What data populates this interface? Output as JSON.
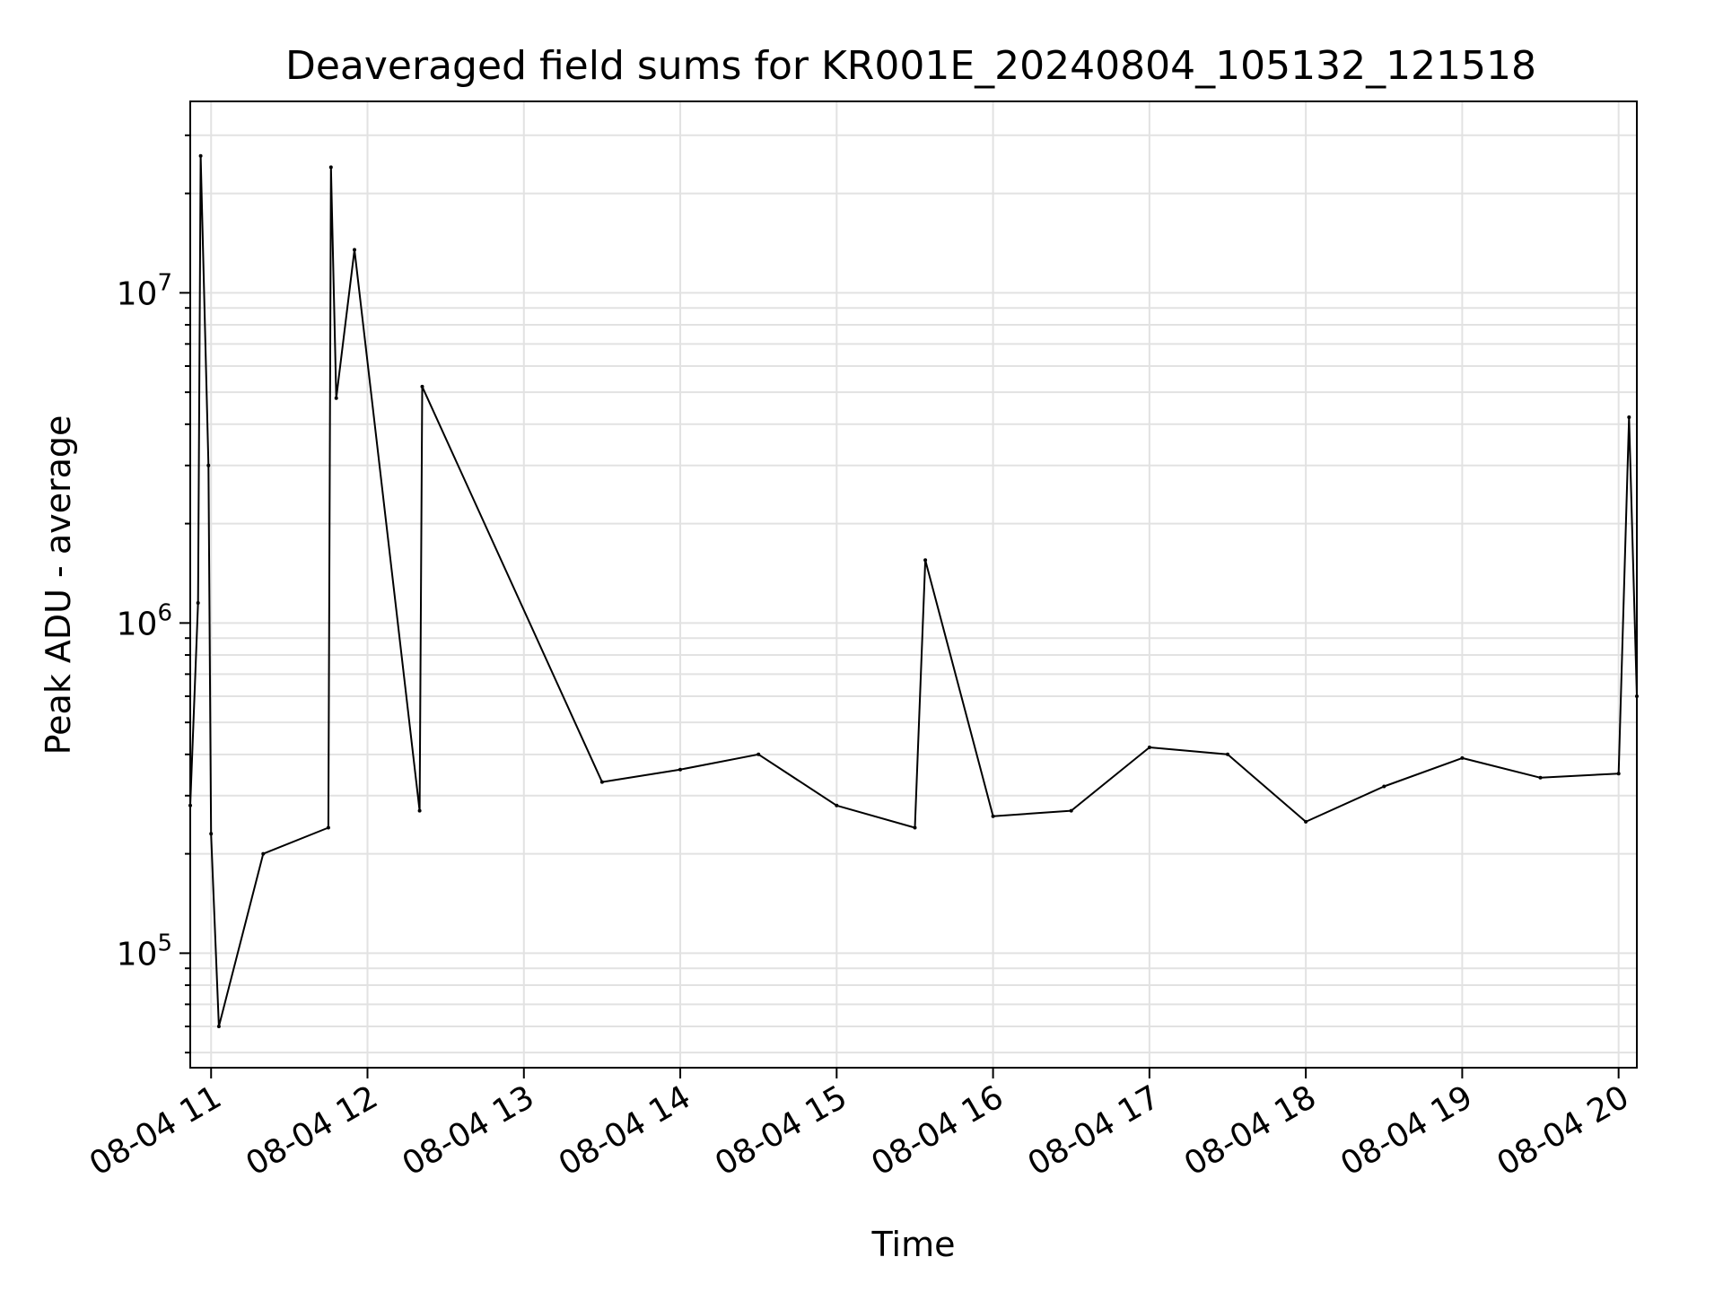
{
  "chart_data": {
    "type": "line",
    "title": "Deaveraged field sums for KR001E_20240804_105132_121518",
    "xlabel": "Time",
    "ylabel": "Peak ADU - average",
    "x_range": [
      "2024-08-04 10:52",
      "2024-08-04 20:07"
    ],
    "y_scale": "log",
    "ylim": [
      45000,
      38000000
    ],
    "grid": true,
    "line_color": "#000000",
    "x_ticks": [
      "08-04 11",
      "08-04 12",
      "08-04 13",
      "08-04 14",
      "08-04 15",
      "08-04 16",
      "08-04 17",
      "08-04 18",
      "08-04 19",
      "08-04 20"
    ],
    "y_ticks": [
      {
        "value": 100000,
        "base": "10",
        "exp": "5"
      },
      {
        "value": 1000000,
        "base": "10",
        "exp": "6"
      },
      {
        "value": 10000000,
        "base": "10",
        "exp": "7"
      }
    ],
    "series": [
      {
        "x": [
          "2024-08-04 10:52",
          "2024-08-04 10:55",
          "2024-08-04 10:56",
          "2024-08-04 10:59",
          "2024-08-04 11:00",
          "2024-08-04 11:03",
          "2024-08-04 11:20",
          "2024-08-04 11:45",
          "2024-08-04 11:46",
          "2024-08-04 11:48",
          "2024-08-04 11:55",
          "2024-08-04 12:20",
          "2024-08-04 12:21",
          "2024-08-04 13:30",
          "2024-08-04 14:00",
          "2024-08-04 14:30",
          "2024-08-04 15:00",
          "2024-08-04 15:30",
          "2024-08-04 15:34",
          "2024-08-04 16:00",
          "2024-08-04 16:30",
          "2024-08-04 17:00",
          "2024-08-04 17:30",
          "2024-08-04 18:00",
          "2024-08-04 18:30",
          "2024-08-04 19:00",
          "2024-08-04 19:30",
          "2024-08-04 20:00",
          "2024-08-04 20:04",
          "2024-08-04 20:07"
        ],
        "y": [
          280000,
          1150000,
          26000000,
          3000000,
          230000,
          60000,
          200000,
          240000,
          24000000,
          4800000,
          13500000,
          270000,
          5200000,
          330000,
          360000,
          400000,
          280000,
          240000,
          1550000,
          260000,
          270000,
          420000,
          400000,
          250000,
          320000,
          390000,
          340000,
          350000,
          4200000,
          600000
        ]
      }
    ]
  }
}
